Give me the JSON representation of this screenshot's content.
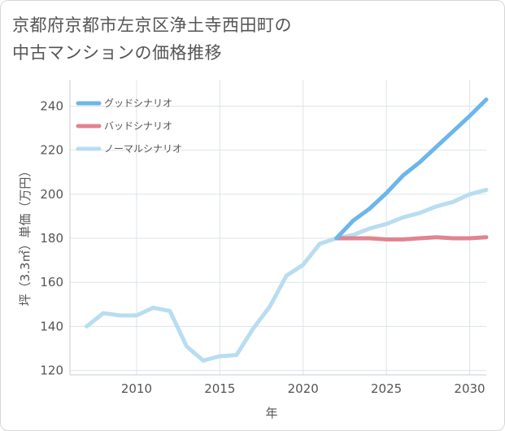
{
  "title_line1": "京都府京都市左京区浄土寺西田町の",
  "title_line2": "中古マンションの価格推移",
  "chart_data": {
    "type": "line",
    "title": "京都府京都市左京区浄土寺西田町の中古マンションの価格推移",
    "xlabel": "年",
    "ylabel": "坪（3.3㎡）単価（万円）",
    "xlim": [
      2006,
      2031
    ],
    "ylim": [
      118,
      252
    ],
    "xticks": [
      2010,
      2015,
      2020,
      2025,
      2030
    ],
    "yticks": [
      120,
      140,
      160,
      180,
      200,
      220,
      240
    ],
    "legend_position": "top-left",
    "series": [
      {
        "name": "グッドシナリオ",
        "color": "#6cb6ea",
        "x": [
          2022,
          2023,
          2024,
          2025,
          2026,
          2027,
          2028,
          2029,
          2030,
          2031
        ],
        "y": [
          180,
          188,
          193.5,
          200.5,
          208.5,
          214.5,
          221.5,
          228.5,
          235.5,
          243
        ]
      },
      {
        "name": "バッドシナリオ",
        "color": "#e0848f",
        "x": [
          2022,
          2023,
          2024,
          2025,
          2026,
          2027,
          2028,
          2029,
          2030,
          2031
        ],
        "y": [
          180,
          180,
          180,
          179.5,
          179.5,
          180,
          180.5,
          180,
          180,
          180.5
        ]
      },
      {
        "name": "ノーマルシナリオ",
        "color": "#b8ddf0",
        "x": [
          2007,
          2008,
          2009,
          2010,
          2011,
          2012,
          2013,
          2014,
          2015,
          2016,
          2017,
          2018,
          2019,
          2020,
          2021,
          2022,
          2023,
          2024,
          2025,
          2026,
          2027,
          2028,
          2029,
          2030,
          2031
        ],
        "y": [
          140,
          146,
          145,
          145,
          148.5,
          147,
          131,
          124.5,
          126.5,
          127,
          139,
          149,
          163,
          168,
          177.5,
          180,
          181.5,
          184.5,
          186.5,
          189.5,
          191.5,
          194.5,
          196.5,
          200,
          202
        ]
      }
    ]
  }
}
